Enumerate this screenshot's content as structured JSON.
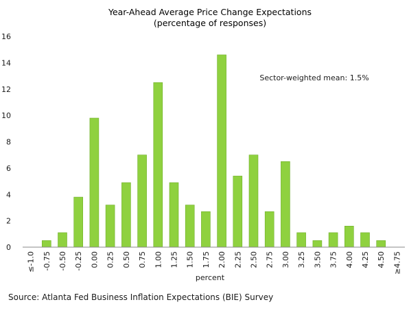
{
  "chart_data": {
    "type": "bar",
    "title": "Year-Ahead Average Price Change Expectations",
    "subtitle": "(percentage of responses)",
    "xlabel": "percent",
    "ylabel": "",
    "ylim": [
      0,
      16
    ],
    "yticks": [
      "0",
      "2",
      "4",
      "6",
      "8",
      "10",
      "12",
      "14",
      "16"
    ],
    "grid": false,
    "categories": [
      "≤-1.0",
      "-0.75",
      "-0.50",
      "-0.25",
      "0.00",
      "0.25",
      "0.50",
      "0.75",
      "1.00",
      "1.25",
      "1.50",
      "1.75",
      "2.00",
      "2.25",
      "2.50",
      "2.75",
      "3.00",
      "3.25",
      "3.50",
      "3.75",
      "4.00",
      "4.25",
      "4.50",
      "≥4.75"
    ],
    "values": [
      0,
      0.5,
      1.1,
      3.8,
      9.8,
      3.2,
      4.9,
      7.0,
      12.5,
      4.9,
      3.2,
      2.7,
      14.6,
      5.4,
      7.0,
      2.7,
      6.5,
      1.1,
      0.5,
      1.1,
      1.6,
      1.1,
      0.5,
      0
    ],
    "bar_color": "#8fd13f",
    "annotation": "Sector-weighted mean: 1.5%"
  },
  "source": "Source: Atlanta Fed Business Inflation Expectations (BIE) Survey"
}
